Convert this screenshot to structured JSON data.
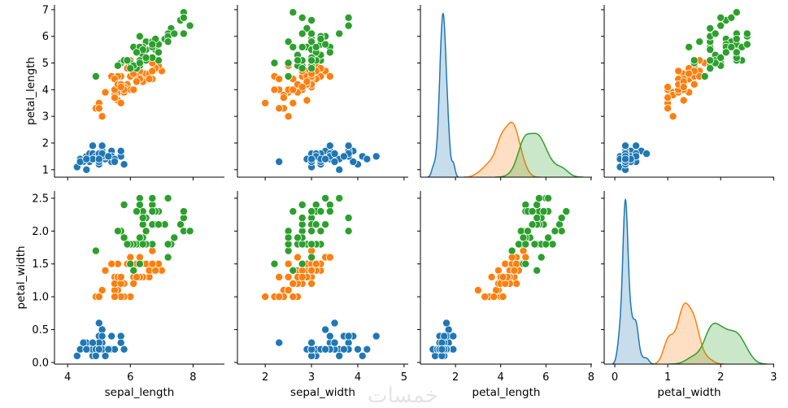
{
  "chart_data": {
    "type": "scatter",
    "kind": "pairplot",
    "diagonal_type": "kde",
    "variables": [
      "sepal_length",
      "sepal_width",
      "petal_length",
      "petal_width"
    ],
    "row_variables": [
      "petal_length",
      "petal_width"
    ],
    "column_variables": [
      "sepal_length",
      "sepal_width",
      "petal_length",
      "petal_width"
    ],
    "xlabels": [
      "sepal_length",
      "sepal_width",
      "petal_length",
      "petal_width"
    ],
    "ylabels": [
      "petal_length",
      "petal_width"
    ],
    "column_ranges": [
      [
        3.58,
        9.0
      ],
      [
        1.4,
        5.09
      ],
      [
        0.45,
        8.04
      ],
      [
        -0.2,
        3.01
      ]
    ],
    "row_ranges": [
      [
        0.72,
        7.18
      ],
      [
        -0.025,
        2.61
      ]
    ],
    "column_ticks": [
      [
        "4",
        "6",
        "8"
      ],
      [
        "2",
        "3",
        "4",
        "5"
      ],
      [
        "2",
        "4",
        "6",
        "8"
      ],
      [
        "0",
        "1",
        "2",
        "3"
      ]
    ],
    "row_ticks": [
      [
        "1",
        "2",
        "3",
        "4",
        "5",
        "6",
        "7"
      ],
      [
        "0.0",
        "0.5",
        "1.0",
        "1.5",
        "2.0",
        "2.5"
      ]
    ],
    "grid": false,
    "legend": "none",
    "series": [
      {
        "color": "#1f77b4",
        "points": [
          [
            5.1,
            3.5,
            1.4,
            0.2
          ],
          [
            4.9,
            3.0,
            1.4,
            0.2
          ],
          [
            4.7,
            3.2,
            1.3,
            0.2
          ],
          [
            4.6,
            3.1,
            1.5,
            0.2
          ],
          [
            5.0,
            3.6,
            1.4,
            0.2
          ],
          [
            5.4,
            3.9,
            1.7,
            0.4
          ],
          [
            4.6,
            3.4,
            1.4,
            0.3
          ],
          [
            5.0,
            3.4,
            1.5,
            0.2
          ],
          [
            4.4,
            2.9,
            1.4,
            0.2
          ],
          [
            4.9,
            3.1,
            1.5,
            0.1
          ],
          [
            5.4,
            3.7,
            1.5,
            0.2
          ],
          [
            4.8,
            3.4,
            1.6,
            0.2
          ],
          [
            4.8,
            3.0,
            1.4,
            0.1
          ],
          [
            4.3,
            3.0,
            1.1,
            0.1
          ],
          [
            5.8,
            4.0,
            1.2,
            0.2
          ],
          [
            5.7,
            4.4,
            1.5,
            0.4
          ],
          [
            5.4,
            3.9,
            1.3,
            0.4
          ],
          [
            5.1,
            3.5,
            1.4,
            0.3
          ],
          [
            5.7,
            3.8,
            1.7,
            0.3
          ],
          [
            5.1,
            3.8,
            1.5,
            0.3
          ],
          [
            5.4,
            3.4,
            1.7,
            0.2
          ],
          [
            5.1,
            3.7,
            1.5,
            0.4
          ],
          [
            4.6,
            3.6,
            1.0,
            0.2
          ],
          [
            5.1,
            3.3,
            1.7,
            0.5
          ],
          [
            4.8,
            3.4,
            1.9,
            0.2
          ],
          [
            5.0,
            3.0,
            1.6,
            0.2
          ],
          [
            5.0,
            3.4,
            1.6,
            0.4
          ],
          [
            5.2,
            3.5,
            1.5,
            0.2
          ],
          [
            5.2,
            3.4,
            1.4,
            0.2
          ],
          [
            4.7,
            3.2,
            1.6,
            0.2
          ],
          [
            4.8,
            3.1,
            1.6,
            0.2
          ],
          [
            5.4,
            3.4,
            1.5,
            0.4
          ],
          [
            5.2,
            4.1,
            1.5,
            0.1
          ],
          [
            5.5,
            4.2,
            1.4,
            0.2
          ],
          [
            4.9,
            3.1,
            1.5,
            0.2
          ],
          [
            5.0,
            3.2,
            1.2,
            0.2
          ],
          [
            5.5,
            3.5,
            1.3,
            0.2
          ],
          [
            4.9,
            3.6,
            1.4,
            0.1
          ],
          [
            4.4,
            3.0,
            1.3,
            0.2
          ],
          [
            5.1,
            3.4,
            1.5,
            0.2
          ],
          [
            5.0,
            3.5,
            1.3,
            0.3
          ],
          [
            4.5,
            2.3,
            1.3,
            0.3
          ],
          [
            4.4,
            3.2,
            1.3,
            0.2
          ],
          [
            5.0,
            3.5,
            1.6,
            0.6
          ],
          [
            5.1,
            3.8,
            1.9,
            0.4
          ],
          [
            4.8,
            3.0,
            1.4,
            0.3
          ],
          [
            5.1,
            3.8,
            1.6,
            0.2
          ],
          [
            4.6,
            3.2,
            1.4,
            0.2
          ],
          [
            5.3,
            3.7,
            1.5,
            0.2
          ],
          [
            5.0,
            3.3,
            1.4,
            0.2
          ]
        ]
      },
      {
        "color": "#ff7f0e",
        "points": [
          [
            7.0,
            3.2,
            4.7,
            1.4
          ],
          [
            6.4,
            3.2,
            4.5,
            1.5
          ],
          [
            6.9,
            3.1,
            4.9,
            1.5
          ],
          [
            5.5,
            2.3,
            4.0,
            1.3
          ],
          [
            6.5,
            2.8,
            4.6,
            1.5
          ],
          [
            5.7,
            2.8,
            4.5,
            1.3
          ],
          [
            6.3,
            3.3,
            4.7,
            1.6
          ],
          [
            4.9,
            2.4,
            3.3,
            1.0
          ],
          [
            6.6,
            2.9,
            4.6,
            1.3
          ],
          [
            5.2,
            2.7,
            3.9,
            1.4
          ],
          [
            5.0,
            2.0,
            3.5,
            1.0
          ],
          [
            5.9,
            3.0,
            4.2,
            1.5
          ],
          [
            6.0,
            2.2,
            4.0,
            1.0
          ],
          [
            6.1,
            2.9,
            4.7,
            1.4
          ],
          [
            5.6,
            2.9,
            3.6,
            1.3
          ],
          [
            6.7,
            3.1,
            4.4,
            1.4
          ],
          [
            5.6,
            3.0,
            4.5,
            1.5
          ],
          [
            5.8,
            2.7,
            4.1,
            1.0
          ],
          [
            6.2,
            2.2,
            4.5,
            1.5
          ],
          [
            5.6,
            2.5,
            3.9,
            1.1
          ],
          [
            5.9,
            3.2,
            4.8,
            1.8
          ],
          [
            6.1,
            2.8,
            4.0,
            1.3
          ],
          [
            6.3,
            2.5,
            4.9,
            1.5
          ],
          [
            6.1,
            2.8,
            4.7,
            1.2
          ],
          [
            6.4,
            2.9,
            4.3,
            1.3
          ],
          [
            6.6,
            3.0,
            4.4,
            1.4
          ],
          [
            6.8,
            2.8,
            4.8,
            1.4
          ],
          [
            6.7,
            3.0,
            5.0,
            1.7
          ],
          [
            6.0,
            2.9,
            4.5,
            1.5
          ],
          [
            5.7,
            2.6,
            3.5,
            1.0
          ],
          [
            5.5,
            2.4,
            3.8,
            1.1
          ],
          [
            5.5,
            2.4,
            3.7,
            1.0
          ],
          [
            5.8,
            2.7,
            3.9,
            1.2
          ],
          [
            6.0,
            2.7,
            5.1,
            1.6
          ],
          [
            5.4,
            3.0,
            4.5,
            1.5
          ],
          [
            6.0,
            3.4,
            4.5,
            1.6
          ],
          [
            6.7,
            3.1,
            4.7,
            1.5
          ],
          [
            6.3,
            2.3,
            4.4,
            1.3
          ],
          [
            5.6,
            3.0,
            4.1,
            1.3
          ],
          [
            5.5,
            2.5,
            4.0,
            1.3
          ],
          [
            5.5,
            2.6,
            4.4,
            1.2
          ],
          [
            6.1,
            3.0,
            4.6,
            1.4
          ],
          [
            5.8,
            2.6,
            4.0,
            1.2
          ],
          [
            5.0,
            2.3,
            3.3,
            1.0
          ],
          [
            5.6,
            2.7,
            4.2,
            1.3
          ],
          [
            5.7,
            3.0,
            4.2,
            1.2
          ],
          [
            5.7,
            2.9,
            4.2,
            1.3
          ],
          [
            6.2,
            2.9,
            4.3,
            1.3
          ],
          [
            5.1,
            2.5,
            3.0,
            1.1
          ],
          [
            5.7,
            2.8,
            4.1,
            1.3
          ]
        ]
      },
      {
        "color": "#2ca02c",
        "points": [
          [
            6.3,
            3.3,
            6.0,
            2.5
          ],
          [
            5.8,
            2.7,
            5.1,
            1.9
          ],
          [
            7.1,
            3.0,
            5.9,
            2.1
          ],
          [
            6.3,
            2.9,
            5.6,
            1.8
          ],
          [
            6.5,
            3.0,
            5.8,
            2.2
          ],
          [
            7.6,
            3.0,
            6.6,
            2.1
          ],
          [
            4.9,
            2.5,
            4.5,
            1.7
          ],
          [
            7.3,
            2.9,
            6.3,
            1.8
          ],
          [
            6.7,
            2.5,
            5.8,
            1.8
          ],
          [
            7.2,
            3.6,
            6.1,
            2.5
          ],
          [
            6.5,
            3.2,
            5.1,
            2.0
          ],
          [
            6.4,
            2.7,
            5.3,
            1.9
          ],
          [
            6.8,
            3.0,
            5.5,
            2.1
          ],
          [
            5.7,
            2.5,
            5.0,
            2.0
          ],
          [
            5.8,
            2.8,
            5.1,
            2.4
          ],
          [
            6.4,
            3.2,
            5.3,
            2.3
          ],
          [
            6.5,
            3.0,
            5.5,
            1.8
          ],
          [
            7.7,
            3.8,
            6.7,
            2.2
          ],
          [
            7.7,
            2.6,
            6.9,
            2.3
          ],
          [
            6.0,
            2.2,
            5.0,
            1.5
          ],
          [
            6.9,
            3.2,
            5.7,
            2.3
          ],
          [
            5.6,
            2.8,
            4.9,
            2.0
          ],
          [
            7.7,
            2.8,
            6.7,
            2.0
          ],
          [
            6.3,
            2.7,
            4.9,
            1.8
          ],
          [
            6.7,
            3.3,
            5.7,
            2.1
          ],
          [
            7.2,
            3.2,
            6.0,
            1.8
          ],
          [
            6.2,
            2.8,
            4.8,
            1.8
          ],
          [
            6.1,
            3.0,
            4.9,
            1.8
          ],
          [
            6.4,
            2.8,
            5.6,
            2.1
          ],
          [
            7.2,
            3.0,
            5.8,
            1.6
          ],
          [
            7.4,
            2.8,
            6.1,
            1.9
          ],
          [
            7.9,
            3.8,
            6.4,
            2.0
          ],
          [
            6.4,
            2.8,
            5.6,
            2.2
          ],
          [
            6.3,
            2.8,
            5.1,
            1.5
          ],
          [
            6.1,
            2.6,
            5.6,
            1.4
          ],
          [
            7.7,
            3.0,
            6.1,
            2.3
          ],
          [
            6.3,
            3.4,
            5.6,
            2.4
          ],
          [
            6.4,
            3.1,
            5.5,
            1.8
          ],
          [
            6.0,
            3.0,
            4.8,
            1.8
          ],
          [
            6.9,
            3.1,
            5.4,
            2.1
          ],
          [
            6.7,
            3.1,
            5.6,
            2.4
          ],
          [
            6.9,
            3.1,
            5.1,
            2.3
          ],
          [
            5.8,
            2.7,
            5.1,
            1.9
          ],
          [
            6.8,
            3.2,
            5.9,
            2.3
          ],
          [
            6.7,
            3.3,
            5.7,
            2.5
          ],
          [
            6.7,
            3.0,
            5.2,
            2.3
          ],
          [
            6.3,
            2.5,
            5.0,
            1.9
          ],
          [
            6.5,
            3.0,
            5.2,
            2.0
          ],
          [
            6.2,
            3.4,
            5.4,
            2.3
          ],
          [
            5.9,
            3.0,
            5.1,
            1.8
          ]
        ]
      }
    ]
  },
  "watermark": "خمسات"
}
